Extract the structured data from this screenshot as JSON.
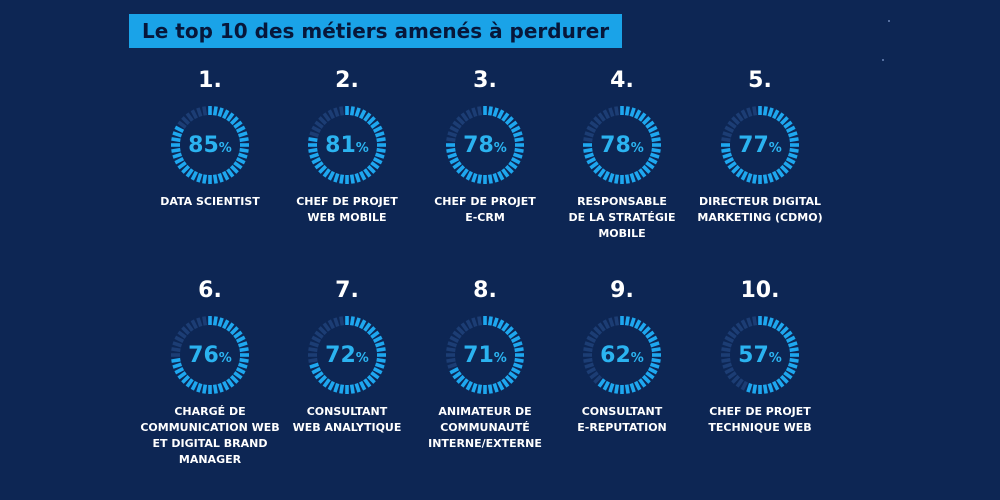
{
  "title": "Le top 10 des métiers amenés à perdurer",
  "colors": {
    "background": "#0d2654",
    "accent": "#1aa3e8",
    "gauge_on": "#1ea7ef",
    "gauge_off": "#1c3d74",
    "percent_text": "#2bb3f0",
    "text": "#ffffff"
  },
  "items": [
    {
      "rank": "1.",
      "value": "85",
      "unit": "%",
      "label": "DATA SCIENTIST"
    },
    {
      "rank": "2.",
      "value": "81",
      "unit": "%",
      "label": "CHEF DE PROJET\nWEB MOBILE"
    },
    {
      "rank": "3.",
      "value": "78",
      "unit": "%",
      "label": "CHEF DE PROJET\nE-CRM"
    },
    {
      "rank": "4.",
      "value": "78",
      "unit": "%",
      "label": "RESPONSABLE\nDE LA STRATÉGIE\nMOBILE"
    },
    {
      "rank": "5.",
      "value": "77",
      "unit": "%",
      "label": "DIRECTEUR DIGITAL\nMARKETING (CDMO)"
    },
    {
      "rank": "6.",
      "value": "76",
      "unit": "%",
      "label": "CHARGÉ DE\nCOMMUNICATION WEB\nET DIGITAL BRAND\nMANAGER"
    },
    {
      "rank": "7.",
      "value": "72",
      "unit": "%",
      "label": "CONSULTANT\nWEB ANALYTIQUE"
    },
    {
      "rank": "8.",
      "value": "71",
      "unit": "%",
      "label": "ANIMATEUR DE\nCOMMUNAUTÉ\nINTERNE/EXTERNE"
    },
    {
      "rank": "9.",
      "value": "62",
      "unit": "%",
      "label": "CONSULTANT\nE-REPUTATION"
    },
    {
      "rank": "10.",
      "value": "57",
      "unit": "%",
      "label": "CHEF DE PROJET\nTECHNIQUE WEB"
    }
  ],
  "chart_data": {
    "type": "gauge",
    "title": "Le top 10 des métiers amenés à perdurer",
    "unit": "%",
    "categories": [
      "DATA SCIENTIST",
      "CHEF DE PROJET WEB MOBILE",
      "CHEF DE PROJET E-CRM",
      "RESPONSABLE DE LA STRATÉGIE MOBILE",
      "DIRECTEUR DIGITAL MARKETING (CDMO)",
      "CHARGÉ DE COMMUNICATION WEB ET DIGITAL BRAND MANAGER",
      "CONSULTANT WEB ANALYTIQUE",
      "ANIMATEUR DE COMMUNAUTÉ INTERNE/EXTERNE",
      "CONSULTANT E-REPUTATION",
      "CHEF DE PROJET TECHNIQUE WEB"
    ],
    "values": [
      85,
      81,
      78,
      78,
      77,
      76,
      72,
      71,
      62,
      57
    ],
    "ylim": [
      0,
      100
    ]
  }
}
